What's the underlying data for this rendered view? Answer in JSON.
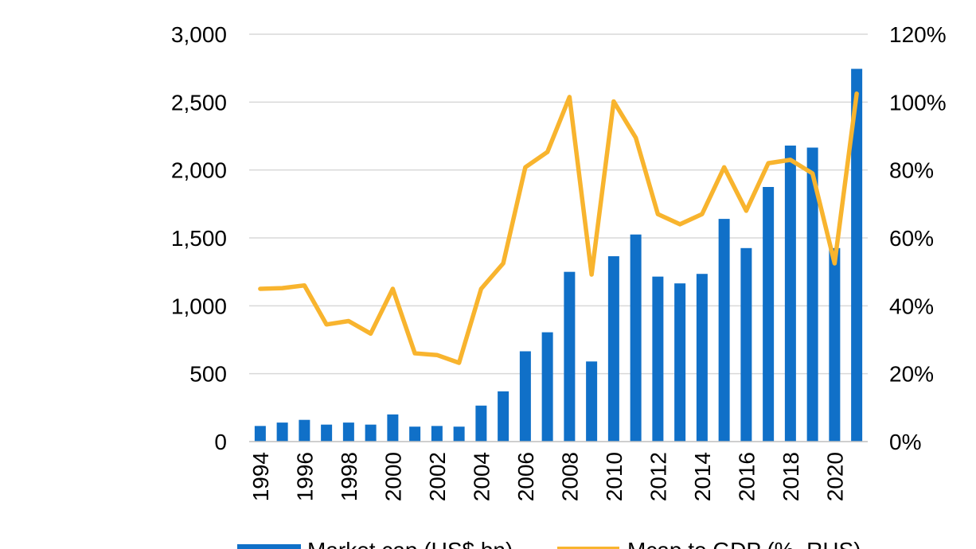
{
  "chart_data": {
    "type": "bar",
    "categories": [
      "1994",
      "1995",
      "1996",
      "1997",
      "1998",
      "1999",
      "2000",
      "2001",
      "2002",
      "2003",
      "2004",
      "2005",
      "2006",
      "2007",
      "2008",
      "2009",
      "2010",
      "2011",
      "2012",
      "2013",
      "2014",
      "2015",
      "2016",
      "2017",
      "2018",
      "2019",
      "2020",
      "2021"
    ],
    "x_tick_labels": [
      "1994",
      "",
      "1996",
      "",
      "1998",
      "",
      "2000",
      "",
      "2002",
      "",
      "2004",
      "",
      "2006",
      "",
      "2008",
      "",
      "2010",
      "",
      "2012",
      "",
      "2014",
      "",
      "2016",
      "",
      "2018",
      "",
      "2020",
      ""
    ],
    "series": [
      {
        "name": "Market cap (US$ bn)",
        "type": "bar",
        "axis": "left",
        "color": "#1070C8",
        "values": [
          115,
          140,
          160,
          125,
          140,
          125,
          200,
          110,
          115,
          110,
          265,
          370,
          665,
          805,
          1250,
          590,
          1365,
          1525,
          1215,
          1165,
          1235,
          1640,
          1425,
          1875,
          2180,
          2165,
          1425,
          2745
        ]
      },
      {
        "name": "Mcap to GDP (%, RHS)",
        "type": "line",
        "axis": "right",
        "color": "#F8B42E",
        "values": [
          45,
          45.2,
          46,
          34.5,
          35.5,
          31.8,
          45,
          26,
          25.5,
          23.2,
          45,
          52.5,
          80.8,
          85.3,
          101.5,
          49.2,
          100.2,
          89.5,
          67,
          64,
          67,
          80.8,
          68,
          82,
          83,
          79,
          52.5,
          102.5
        ]
      }
    ],
    "y_left": {
      "min": 0,
      "max": 3000,
      "ticks": [
        "0",
        "500",
        "1,000",
        "1,500",
        "2,000",
        "2,500",
        "3,000"
      ]
    },
    "y_right": {
      "min": 0,
      "max": 120,
      "ticks": [
        "0%",
        "20%",
        "40%",
        "60%",
        "80%",
        "100%",
        "120%"
      ]
    },
    "grid": true,
    "legend": {
      "position": "bottom",
      "entries": [
        "Market cap (US$ bn)",
        "Mcap to GDP (%, RHS)"
      ]
    },
    "colors": {
      "grid": "#D9D9D9",
      "axis": "#BFBFBF",
      "bar": "#1070C8",
      "line": "#F8B42E"
    }
  }
}
